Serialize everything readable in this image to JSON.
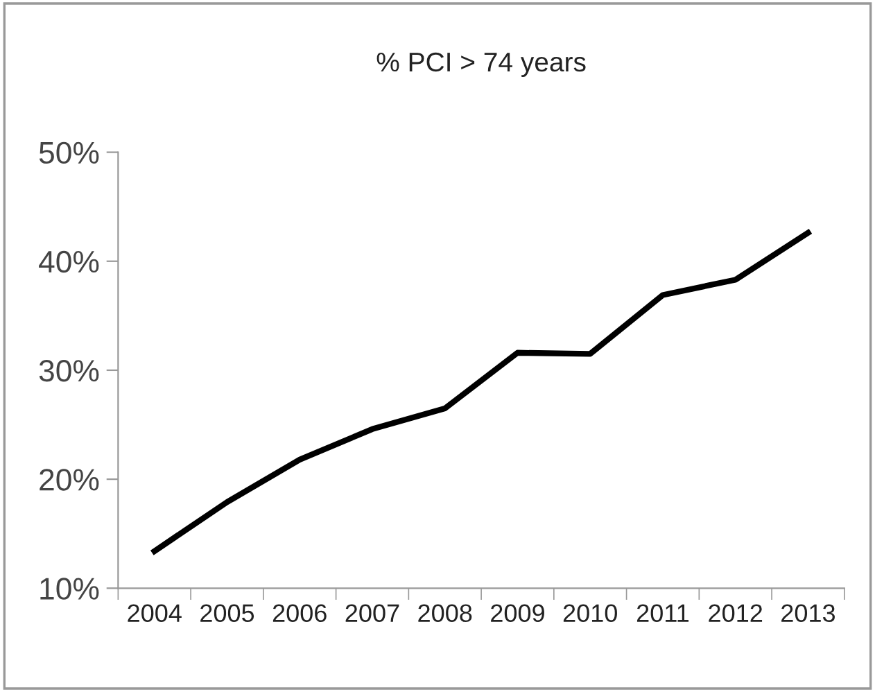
{
  "chart_data": {
    "type": "line",
    "title": "% PCI > 74 years",
    "categories": [
      "2004",
      "2005",
      "2006",
      "2007",
      "2008",
      "2009",
      "2010",
      "2011",
      "2012",
      "2013"
    ],
    "series": [
      {
        "color": "#000000",
        "values": [
          13.4,
          17.9,
          21.8,
          24.6,
          26.5,
          31.6,
          31.5,
          36.9,
          38.3,
          42.6
        ]
      }
    ],
    "ylim": [
      10,
      50
    ],
    "yticks": [
      {
        "value": 10,
        "label": "10%"
      },
      {
        "value": 20,
        "label": "20%"
      },
      {
        "value": 30,
        "label": "30%"
      },
      {
        "value": 40,
        "label": "40%"
      },
      {
        "value": 50,
        "label": "50%"
      }
    ],
    "grid": false,
    "marker": "none",
    "line_style": "solid"
  }
}
